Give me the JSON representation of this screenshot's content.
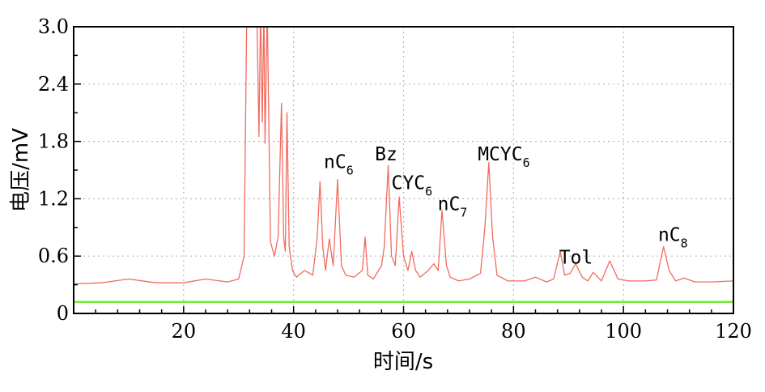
{
  "chart_data": {
    "type": "line",
    "title": "",
    "xlabel": "时间/s",
    "ylabel": "电压/mV",
    "xlim": [
      0,
      120
    ],
    "ylim": [
      0,
      3.0
    ],
    "x_ticks": [
      "20",
      "40",
      "60",
      "80",
      "100",
      "120"
    ],
    "y_ticks": [
      "0",
      "0.6",
      "1.2",
      "1.8",
      "2.4",
      "3.0"
    ],
    "grid": true,
    "colors": {
      "signal": "#f26b5e",
      "baseline": "#77e83e",
      "grid": "#b8b8b8"
    },
    "series": [
      {
        "x": [
          0,
          5,
          10,
          15,
          20,
          24,
          28,
          30,
          31,
          31.5,
          32.5,
          33.3,
          33.7,
          34.0,
          34.3,
          34.6,
          34.8,
          35.2,
          35.8,
          36.5,
          37.2,
          37.8,
          38.2,
          38.5,
          38.8,
          39.2,
          39.8,
          40.5,
          42,
          43.5,
          44.3,
          44.8,
          45.3,
          45.8,
          46.5,
          47.2,
          48.0,
          48.7,
          49.5,
          51,
          52.5,
          53.0,
          53.5,
          54.5,
          56,
          56.5,
          57.2,
          57.8,
          58.5,
          59.2,
          60.0,
          60.8,
          61.5,
          62.2,
          63,
          64.5,
          65.5,
          66.3,
          67.0,
          67.8,
          68.5,
          70,
          72,
          74,
          74.8,
          75.5,
          76.2,
          77,
          79,
          82,
          84,
          86,
          87.3,
          88.5,
          89.3,
          90.3,
          91.3,
          92.5,
          93.5,
          94.5,
          96,
          97.5,
          99,
          101,
          104,
          106,
          107.3,
          108.3,
          109.5,
          111,
          113,
          116,
          120
        ],
        "y": [
          0.31,
          0.32,
          0.36,
          0.32,
          0.32,
          0.36,
          0.33,
          0.36,
          0.6,
          3.2,
          3.2,
          3.2,
          1.85,
          3.2,
          2.0,
          3.2,
          1.78,
          3.2,
          0.75,
          0.6,
          0.8,
          2.2,
          0.8,
          0.65,
          2.1,
          0.7,
          0.45,
          0.38,
          0.45,
          0.4,
          0.8,
          1.38,
          0.7,
          0.45,
          0.78,
          0.5,
          1.4,
          0.5,
          0.4,
          0.38,
          0.45,
          0.8,
          0.4,
          0.36,
          0.5,
          0.7,
          1.55,
          0.6,
          0.5,
          1.22,
          0.6,
          0.45,
          0.65,
          0.45,
          0.38,
          0.45,
          0.52,
          0.45,
          1.08,
          0.5,
          0.38,
          0.34,
          0.36,
          0.42,
          0.9,
          1.58,
          0.8,
          0.4,
          0.34,
          0.34,
          0.38,
          0.33,
          0.36,
          0.65,
          0.4,
          0.42,
          0.52,
          0.38,
          0.34,
          0.43,
          0.34,
          0.55,
          0.36,
          0.34,
          0.34,
          0.35,
          0.7,
          0.45,
          0.34,
          0.37,
          0.33,
          0.33,
          0.34
        ]
      },
      {
        "x": [
          0,
          120
        ],
        "y": [
          0.12,
          0.12
        ]
      }
    ],
    "annotations": [
      {
        "base": "nC",
        "sub": "6",
        "x": 45.5,
        "y": 1.52
      },
      {
        "base": "Bz",
        "sub": "",
        "x": 54.8,
        "y": 1.6
      },
      {
        "base": "CYC",
        "sub": "6",
        "x": 57.8,
        "y": 1.3
      },
      {
        "base": "nC",
        "sub": "7",
        "x": 66.2,
        "y": 1.08
      },
      {
        "base": "MCYC",
        "sub": "6",
        "x": 73.5,
        "y": 1.6
      },
      {
        "base": "Tol",
        "sub": "",
        "x": 88.3,
        "y": 0.52
      },
      {
        "base": "nC",
        "sub": "8",
        "x": 106.3,
        "y": 0.76
      }
    ]
  }
}
